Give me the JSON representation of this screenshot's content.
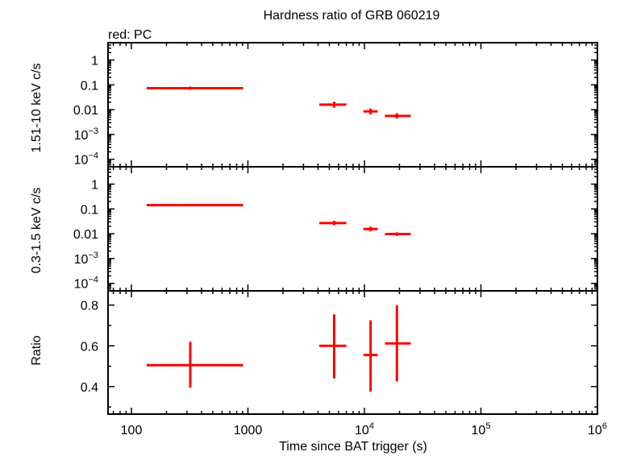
{
  "chart_data": {
    "type": "scatter",
    "title": "Hardness ratio of GRB 060219",
    "legend_note": "red: PC",
    "xlabel": "Time since BAT trigger (s)",
    "x_scale": "log",
    "xlim": [
      63,
      1000000
    ],
    "x_ticks": [
      {
        "value": 100,
        "base": "100",
        "exp": ""
      },
      {
        "value": 1000,
        "base": "1000",
        "exp": ""
      },
      {
        "value": 10000,
        "base": "10",
        "exp": "4"
      },
      {
        "value": 100000,
        "base": "10",
        "exp": "5"
      },
      {
        "value": 1000000,
        "base": "10",
        "exp": "6"
      }
    ],
    "series_color": "#ff0000",
    "panels": [
      {
        "id": "hard",
        "ylabel": "1.51-10 keV c/s",
        "y_scale": "log",
        "ylim": [
          5e-05,
          5
        ],
        "y_ticks": [
          {
            "value": 1,
            "base": "1",
            "exp": ""
          },
          {
            "value": 0.1,
            "base": "0.1",
            "exp": ""
          },
          {
            "value": 0.01,
            "base": "0.01",
            "exp": ""
          },
          {
            "value": 0.001,
            "base": "10",
            "exp": "−3"
          },
          {
            "value": 0.0001,
            "base": "10",
            "exp": "−4"
          }
        ],
        "points": [
          {
            "x": 320,
            "xlo": 135,
            "xhi": 910,
            "y": 0.073,
            "ylo": 0.063,
            "yhi": 0.085
          },
          {
            "x": 5500,
            "xlo": 4100,
            "xhi": 7000,
            "y": 0.016,
            "ylo": 0.012,
            "yhi": 0.021
          },
          {
            "x": 11300,
            "xlo": 9800,
            "xhi": 13000,
            "y": 0.0085,
            "ylo": 0.0065,
            "yhi": 0.0112
          },
          {
            "x": 19000,
            "xlo": 15000,
            "xhi": 25000,
            "y": 0.0056,
            "ylo": 0.0044,
            "yhi": 0.0072
          }
        ]
      },
      {
        "id": "soft",
        "ylabel": "0.3-1.5 keV c/s",
        "y_scale": "log",
        "ylim": [
          5e-05,
          5
        ],
        "y_ticks": [
          {
            "value": 1,
            "base": "1",
            "exp": ""
          },
          {
            "value": 0.1,
            "base": "0.1",
            "exp": ""
          },
          {
            "value": 0.01,
            "base": "0.01",
            "exp": ""
          },
          {
            "value": 0.001,
            "base": "10",
            "exp": "−3"
          },
          {
            "value": 0.0001,
            "base": "10",
            "exp": "−4"
          }
        ],
        "points": [
          {
            "x": 320,
            "xlo": 135,
            "xhi": 910,
            "y": 0.142,
            "ylo": 0.126,
            "yhi": 0.16
          },
          {
            "x": 5500,
            "xlo": 4100,
            "xhi": 7000,
            "y": 0.027,
            "ylo": 0.022,
            "yhi": 0.033
          },
          {
            "x": 11300,
            "xlo": 9800,
            "xhi": 13000,
            "y": 0.0155,
            "ylo": 0.0125,
            "yhi": 0.0192
          },
          {
            "x": 19000,
            "xlo": 15000,
            "xhi": 25000,
            "y": 0.0097,
            "ylo": 0.0082,
            "yhi": 0.0114
          }
        ]
      },
      {
        "id": "ratio",
        "ylabel": "Ratio",
        "y_scale": "linear",
        "ylim": [
          0.265,
          0.87
        ],
        "y_ticks": [
          {
            "value": 0.8,
            "base": "0.8",
            "exp": ""
          },
          {
            "value": 0.6,
            "base": "0.6",
            "exp": ""
          },
          {
            "value": 0.4,
            "base": "0.4",
            "exp": ""
          }
        ],
        "points": [
          {
            "x": 320,
            "xlo": 135,
            "xhi": 910,
            "y": 0.505,
            "ylo": 0.395,
            "yhi": 0.62
          },
          {
            "x": 5500,
            "xlo": 4100,
            "xhi": 7000,
            "y": 0.6,
            "ylo": 0.44,
            "yhi": 0.755
          },
          {
            "x": 11300,
            "xlo": 9800,
            "xhi": 13000,
            "y": 0.555,
            "ylo": 0.375,
            "yhi": 0.725
          },
          {
            "x": 19000,
            "xlo": 15000,
            "xhi": 25000,
            "y": 0.612,
            "ylo": 0.425,
            "yhi": 0.8
          }
        ]
      }
    ]
  }
}
